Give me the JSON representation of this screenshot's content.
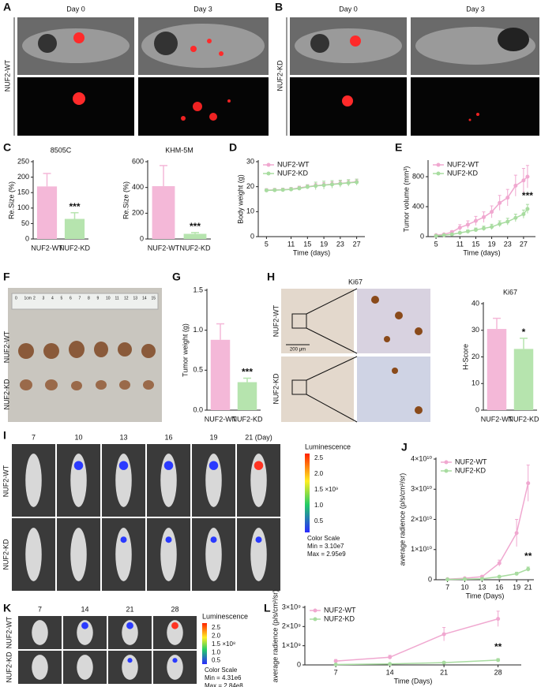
{
  "panels": {
    "A": {
      "letter": "A",
      "day0": "Day 0",
      "day3": "Day 3",
      "group": "NUF2-WT"
    },
    "B": {
      "letter": "B",
      "day0": "Day 0",
      "day3": "Day 3",
      "group": "NUF2-KD"
    },
    "F": {
      "letter": "F",
      "ruler": [
        "0",
        "1cm",
        "2",
        "3",
        "4",
        "5",
        "6",
        "7",
        "8",
        "9",
        "10",
        "11",
        "12",
        "13",
        "14",
        "15"
      ],
      "group_wt": "NUF2-WT",
      "group_kd": "NUF2-KD"
    },
    "H": {
      "letter": "H",
      "stain": "Ki67",
      "group_wt": "NUF2-WT",
      "group_kd": "NUF2-KD",
      "scale": "200 μm"
    },
    "I": {
      "letter": "I",
      "days": [
        "7",
        "10",
        "13",
        "16",
        "19",
        "21 (Day)"
      ],
      "group_wt": "NUF2-WT",
      "group_kd": "NUF2-KD",
      "colorbar": {
        "title": "Luminescence",
        "ticks": [
          "2.5",
          "2.0",
          "1.5 ×10⁹",
          "1.0",
          "0.5"
        ],
        "scale": "Color Scale",
        "min": "Min = 3.10e7",
        "max": "Max = 2.95e9"
      }
    },
    "K": {
      "letter": "K",
      "days": [
        "7",
        "14",
        "21",
        "28"
      ],
      "group_wt": "NUF2-WT",
      "group_kd": "NUF2-KD",
      "colorbar": {
        "title": "Luminescence",
        "ticks": [
          "2.5",
          "2.0",
          "1.5 ×10⁸",
          "1.0",
          "0.5"
        ],
        "scale": "Color Scale",
        "min": "Min = 4.31e6",
        "max": "Max = 2.84e8"
      }
    }
  },
  "chart_data": [
    {
      "type": "bar",
      "panel_label": "C",
      "title": "8505C",
      "y_label": "Re.Size (%)",
      "categories": [
        "NUF2-WT",
        "NUF2-KD"
      ],
      "values": [
        170,
        65
      ],
      "errors": [
        42,
        20
      ],
      "colors": [
        "#f4b8d8",
        "#b6e4ae"
      ],
      "ylim": [
        0,
        250
      ],
      "yticks": [
        0,
        50,
        100,
        150,
        200,
        250
      ],
      "annotation": "***"
    },
    {
      "type": "bar",
      "title": "KHM-5M",
      "y_label": "Re.Size (%)",
      "categories": [
        "NUF2-WT",
        "NUF2-KD"
      ],
      "values": [
        410,
        40
      ],
      "errors": [
        160,
        10
      ],
      "colors": [
        "#f4b8d8",
        "#b6e4ae"
      ],
      "ylim": [
        0,
        600
      ],
      "yticks": [
        0,
        200,
        400,
        600
      ],
      "annotation": "***"
    },
    {
      "type": "line",
      "panel_label": "D",
      "y_label": "Body weight (g)",
      "x_label": "Time (days)",
      "x": [
        5,
        7,
        9,
        11,
        13,
        15,
        17,
        19,
        21,
        23,
        25,
        27
      ],
      "xlim": [
        3,
        29
      ],
      "xticks": [
        5,
        11,
        15,
        19,
        23,
        27
      ],
      "ylim": [
        0,
        30
      ],
      "yticks": [
        0,
        10,
        20,
        30
      ],
      "series": [
        {
          "name": "NUF2-WT",
          "color": "#f0a8d0",
          "values": [
            18.6,
            18.7,
            18.8,
            19.0,
            19.5,
            20.0,
            20.4,
            20.7,
            21.0,
            21.3,
            21.6,
            22.0
          ],
          "errors": [
            0.6,
            0.6,
            0.6,
            0.7,
            0.7,
            0.8,
            0.8,
            0.9,
            0.9,
            1.0,
            1.0,
            1.0
          ]
        },
        {
          "name": "NUF2-KD",
          "color": "#a8dca0",
          "values": [
            18.5,
            18.6,
            18.7,
            18.9,
            19.3,
            19.9,
            20.3,
            20.6,
            20.9,
            21.2,
            21.5,
            21.8
          ],
          "errors": [
            0.6,
            0.6,
            0.6,
            0.7,
            0.7,
            0.8,
            1.5,
            1.6,
            1.5,
            1.4,
            1.3,
            1.2
          ]
        }
      ]
    },
    {
      "type": "line",
      "panel_label": "E",
      "y_label": "Tumor volume (mm³)",
      "x_label": "Time (days)",
      "x": [
        5,
        7,
        9,
        11,
        13,
        15,
        17,
        19,
        21,
        23,
        25,
        27,
        28
      ],
      "xlim": [
        3,
        30
      ],
      "xticks": [
        5,
        11,
        15,
        19,
        23,
        27
      ],
      "ylim": [
        0,
        1000
      ],
      "yticks": [
        0,
        400,
        800
      ],
      "series": [
        {
          "name": "NUF2-WT",
          "color": "#f0a8d0",
          "values": [
            20,
            30,
            60,
            120,
            160,
            210,
            260,
            330,
            450,
            520,
            680,
            750,
            800
          ],
          "errors": [
            5,
            10,
            20,
            40,
            50,
            60,
            70,
            80,
            100,
            110,
            140,
            160,
            150
          ]
        },
        {
          "name": "NUF2-KD",
          "color": "#a8dca0",
          "values": [
            10,
            20,
            30,
            50,
            70,
            90,
            110,
            130,
            170,
            200,
            250,
            300,
            370
          ],
          "errors": [
            3,
            5,
            10,
            15,
            20,
            25,
            30,
            35,
            40,
            45,
            50,
            55,
            60
          ]
        }
      ],
      "annotation": "***"
    },
    {
      "type": "bar",
      "panel_label": "G",
      "y_label": "Tumor weight (g)",
      "categories": [
        "NUF2-WT",
        "NUF2-KD"
      ],
      "values": [
        0.88,
        0.35
      ],
      "errors": [
        0.2,
        0.05
      ],
      "colors": [
        "#f4b8d8",
        "#b6e4ae"
      ],
      "ylim": [
        0,
        1.5
      ],
      "yticks": [
        {
          "value": 0,
          "label": "0.0"
        },
        0.5,
        {
          "value": 1,
          "label": "1.0"
        },
        1.5
      ],
      "annotation": "***"
    },
    {
      "type": "bar",
      "title": "Ki67",
      "y_label": "H-Score",
      "categories": [
        "NUF2-WT",
        "NUF2-KD"
      ],
      "values": [
        30.5,
        23
      ],
      "errors": [
        4,
        4
      ],
      "colors": [
        "#f4b8d8",
        "#b6e4ae"
      ],
      "ylim": [
        0,
        40
      ],
      "yticks": [
        0,
        10,
        20,
        30,
        40
      ],
      "annotation": "*"
    },
    {
      "type": "line",
      "panel_label": "J",
      "y_label": "average radience (p/s/cm²/sr)",
      "x_label": "Time (Days)",
      "x": [
        7,
        10,
        13,
        16,
        19,
        21
      ],
      "xlim": [
        5,
        22
      ],
      "xticks": [
        7,
        10,
        13,
        16,
        19,
        21
      ],
      "ylim": [
        0,
        40000000000
      ],
      "yticks": [
        0,
        {
          "value": 10000000000,
          "label": "1×10¹⁰"
        },
        {
          "value": 20000000000,
          "label": "2×10¹⁰"
        },
        {
          "value": 30000000000,
          "label": "3×10¹⁰"
        },
        {
          "value": 40000000000,
          "label": "4×10¹⁰"
        }
      ],
      "series": [
        {
          "name": "NUF2-WT",
          "color": "#f0a8d0",
          "values": [
            200000000,
            500000000,
            1000000000,
            5500000000,
            15500000000,
            32000000000
          ],
          "errors": [
            100000000,
            200000000,
            400000000,
            1000000000,
            4500000000,
            6000000000
          ]
        },
        {
          "name": "NUF2-KD",
          "color": "#a8dca0",
          "values": [
            100000000,
            200000000,
            300000000,
            1000000000,
            2000000000,
            3500000000
          ],
          "errors": [
            50000000,
            100000000,
            100000000,
            300000000,
            500000000,
            700000000
          ]
        }
      ],
      "annotation": "**"
    },
    {
      "type": "line",
      "panel_label": "L",
      "y_label": "average radience (p/s/cm²/sr)",
      "x_label": "Time (Days)",
      "x": [
        7,
        14,
        21,
        28
      ],
      "xlim": [
        3,
        31
      ],
      "xticks": [
        7,
        14,
        21,
        28
      ],
      "ylim": [
        0,
        3000000000
      ],
      "yticks": [
        0,
        {
          "value": 1000000000,
          "label": "1×10⁹"
        },
        {
          "value": 2000000000,
          "label": "2×10⁹"
        },
        {
          "value": 3000000000,
          "label": "3×10⁹"
        }
      ],
      "series": [
        {
          "name": "NUF2-WT",
          "color": "#f0a8d0",
          "values": [
            200000000,
            400000000,
            1600000000,
            2400000000
          ],
          "errors": [
            80000000,
            100000000,
            350000000,
            400000000
          ]
        },
        {
          "name": "NUF2-KD",
          "color": "#a8dca0",
          "values": [
            20000000,
            50000000,
            120000000,
            250000000
          ],
          "errors": [
            10000000,
            20000000,
            40000000,
            80000000
          ]
        }
      ],
      "annotation": "**"
    }
  ]
}
